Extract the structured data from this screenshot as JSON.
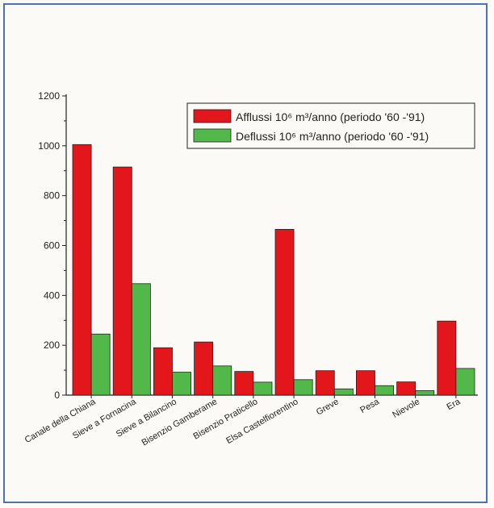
{
  "chart_data": {
    "type": "bar",
    "categories": [
      "Canale della Chiana",
      "Sieve a Fornacina",
      "Sieve a Bilancino",
      "Bisenzio Gamberame",
      "Bisenzio Praticello",
      "Elsa Castelfiorentino",
      "Greve",
      "Pesa",
      "Nievole",
      "Era"
    ],
    "series": [
      {
        "name": "Afflussi 10⁶ m³/anno (periodo '60 -'91)",
        "color": "#e3161b",
        "values": [
          1005,
          915,
          190,
          213,
          95,
          665,
          98,
          98,
          53,
          297
        ]
      },
      {
        "name": "Deflussi 10⁶ m³/anno (periodo '60 -'91)",
        "color": "#52b84a",
        "values": [
          245,
          447,
          92,
          117,
          52,
          62,
          25,
          38,
          18,
          107
        ]
      }
    ],
    "yticks": [
      0,
      200,
      400,
      600,
      800,
      1000,
      1200
    ],
    "ylim": [
      0,
      1200
    ],
    "legend_position": "top-right",
    "grid": false
  }
}
